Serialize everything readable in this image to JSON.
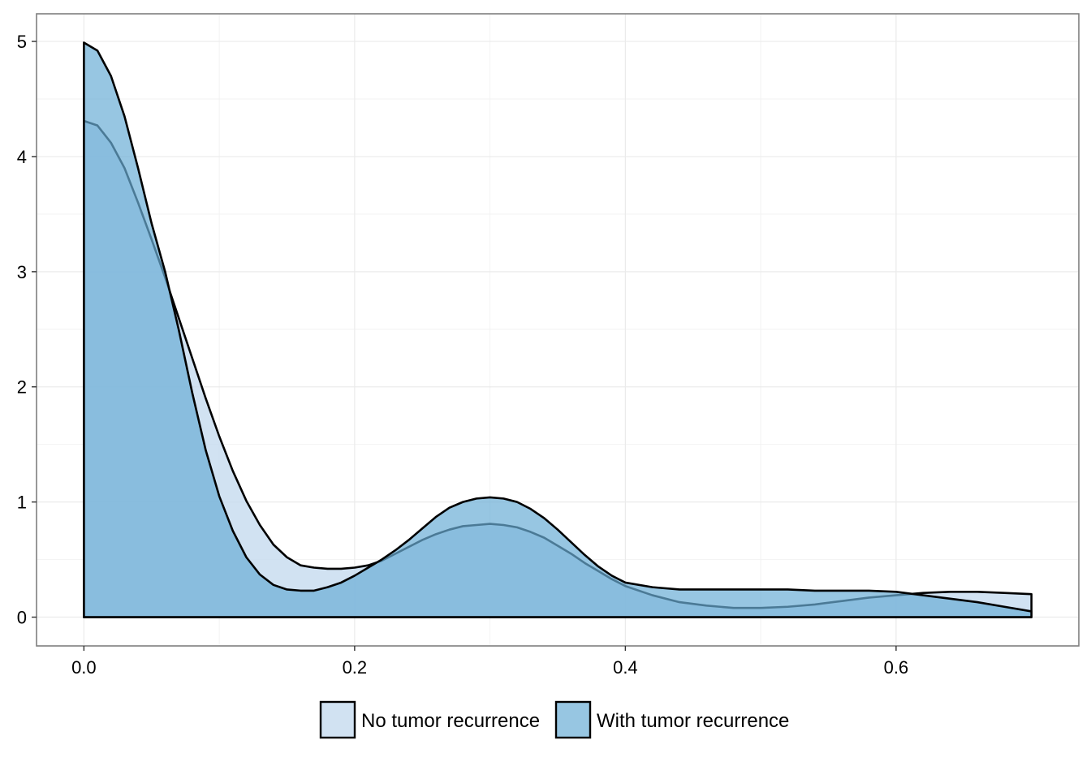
{
  "chart_data": {
    "type": "area",
    "title": "",
    "xlabel": "",
    "ylabel": "",
    "xlim": [
      -0.035,
      0.735
    ],
    "ylim": [
      -0.25,
      5.24
    ],
    "x_ticks": [
      0.0,
      0.2,
      0.4,
      0.6
    ],
    "x_tick_labels": [
      "0.0",
      "0.2",
      "0.4",
      "0.6"
    ],
    "y_ticks": [
      0,
      1,
      2,
      3,
      4,
      5
    ],
    "y_tick_labels": [
      "0",
      "1",
      "2",
      "3",
      "4",
      "5"
    ],
    "grid": true,
    "legend_position": "bottom",
    "series": [
      {
        "name": "No tumor recurrence",
        "color": "#c6dbef",
        "x": [
          0.0,
          0.01,
          0.02,
          0.03,
          0.04,
          0.05,
          0.06,
          0.07,
          0.08,
          0.09,
          0.1,
          0.11,
          0.12,
          0.13,
          0.14,
          0.15,
          0.16,
          0.17,
          0.18,
          0.19,
          0.2,
          0.21,
          0.22,
          0.23,
          0.24,
          0.25,
          0.26,
          0.27,
          0.28,
          0.29,
          0.3,
          0.31,
          0.32,
          0.33,
          0.34,
          0.35,
          0.36,
          0.37,
          0.38,
          0.39,
          0.4,
          0.42,
          0.44,
          0.46,
          0.48,
          0.5,
          0.52,
          0.54,
          0.56,
          0.58,
          0.6,
          0.62,
          0.64,
          0.66,
          0.68,
          0.7
        ],
        "values": [
          4.31,
          4.27,
          4.12,
          3.9,
          3.6,
          3.28,
          2.95,
          2.6,
          2.25,
          1.9,
          1.57,
          1.27,
          1.01,
          0.8,
          0.63,
          0.52,
          0.45,
          0.43,
          0.42,
          0.42,
          0.43,
          0.45,
          0.49,
          0.55,
          0.61,
          0.67,
          0.72,
          0.76,
          0.79,
          0.8,
          0.81,
          0.8,
          0.78,
          0.74,
          0.69,
          0.62,
          0.55,
          0.47,
          0.4,
          0.33,
          0.27,
          0.19,
          0.13,
          0.1,
          0.08,
          0.08,
          0.09,
          0.11,
          0.14,
          0.17,
          0.19,
          0.21,
          0.22,
          0.22,
          0.21,
          0.2
        ]
      },
      {
        "name": "With tumor recurrence",
        "color": "#6baed6",
        "x": [
          0.0,
          0.01,
          0.02,
          0.03,
          0.04,
          0.05,
          0.06,
          0.07,
          0.08,
          0.09,
          0.1,
          0.11,
          0.12,
          0.13,
          0.14,
          0.15,
          0.16,
          0.17,
          0.18,
          0.19,
          0.2,
          0.21,
          0.22,
          0.23,
          0.24,
          0.25,
          0.26,
          0.27,
          0.28,
          0.29,
          0.3,
          0.31,
          0.32,
          0.33,
          0.34,
          0.35,
          0.36,
          0.37,
          0.38,
          0.39,
          0.4,
          0.42,
          0.44,
          0.46,
          0.48,
          0.5,
          0.52,
          0.54,
          0.56,
          0.58,
          0.6,
          0.62,
          0.64,
          0.66,
          0.68,
          0.7
        ],
        "values": [
          4.99,
          4.92,
          4.7,
          4.35,
          3.9,
          3.42,
          3.0,
          2.5,
          1.95,
          1.45,
          1.05,
          0.75,
          0.52,
          0.37,
          0.28,
          0.24,
          0.23,
          0.23,
          0.26,
          0.3,
          0.36,
          0.43,
          0.5,
          0.58,
          0.67,
          0.77,
          0.87,
          0.95,
          1.0,
          1.03,
          1.04,
          1.03,
          1.0,
          0.94,
          0.86,
          0.76,
          0.65,
          0.54,
          0.44,
          0.36,
          0.3,
          0.26,
          0.24,
          0.24,
          0.24,
          0.24,
          0.24,
          0.23,
          0.23,
          0.23,
          0.22,
          0.19,
          0.16,
          0.13,
          0.09,
          0.05
        ]
      }
    ]
  }
}
